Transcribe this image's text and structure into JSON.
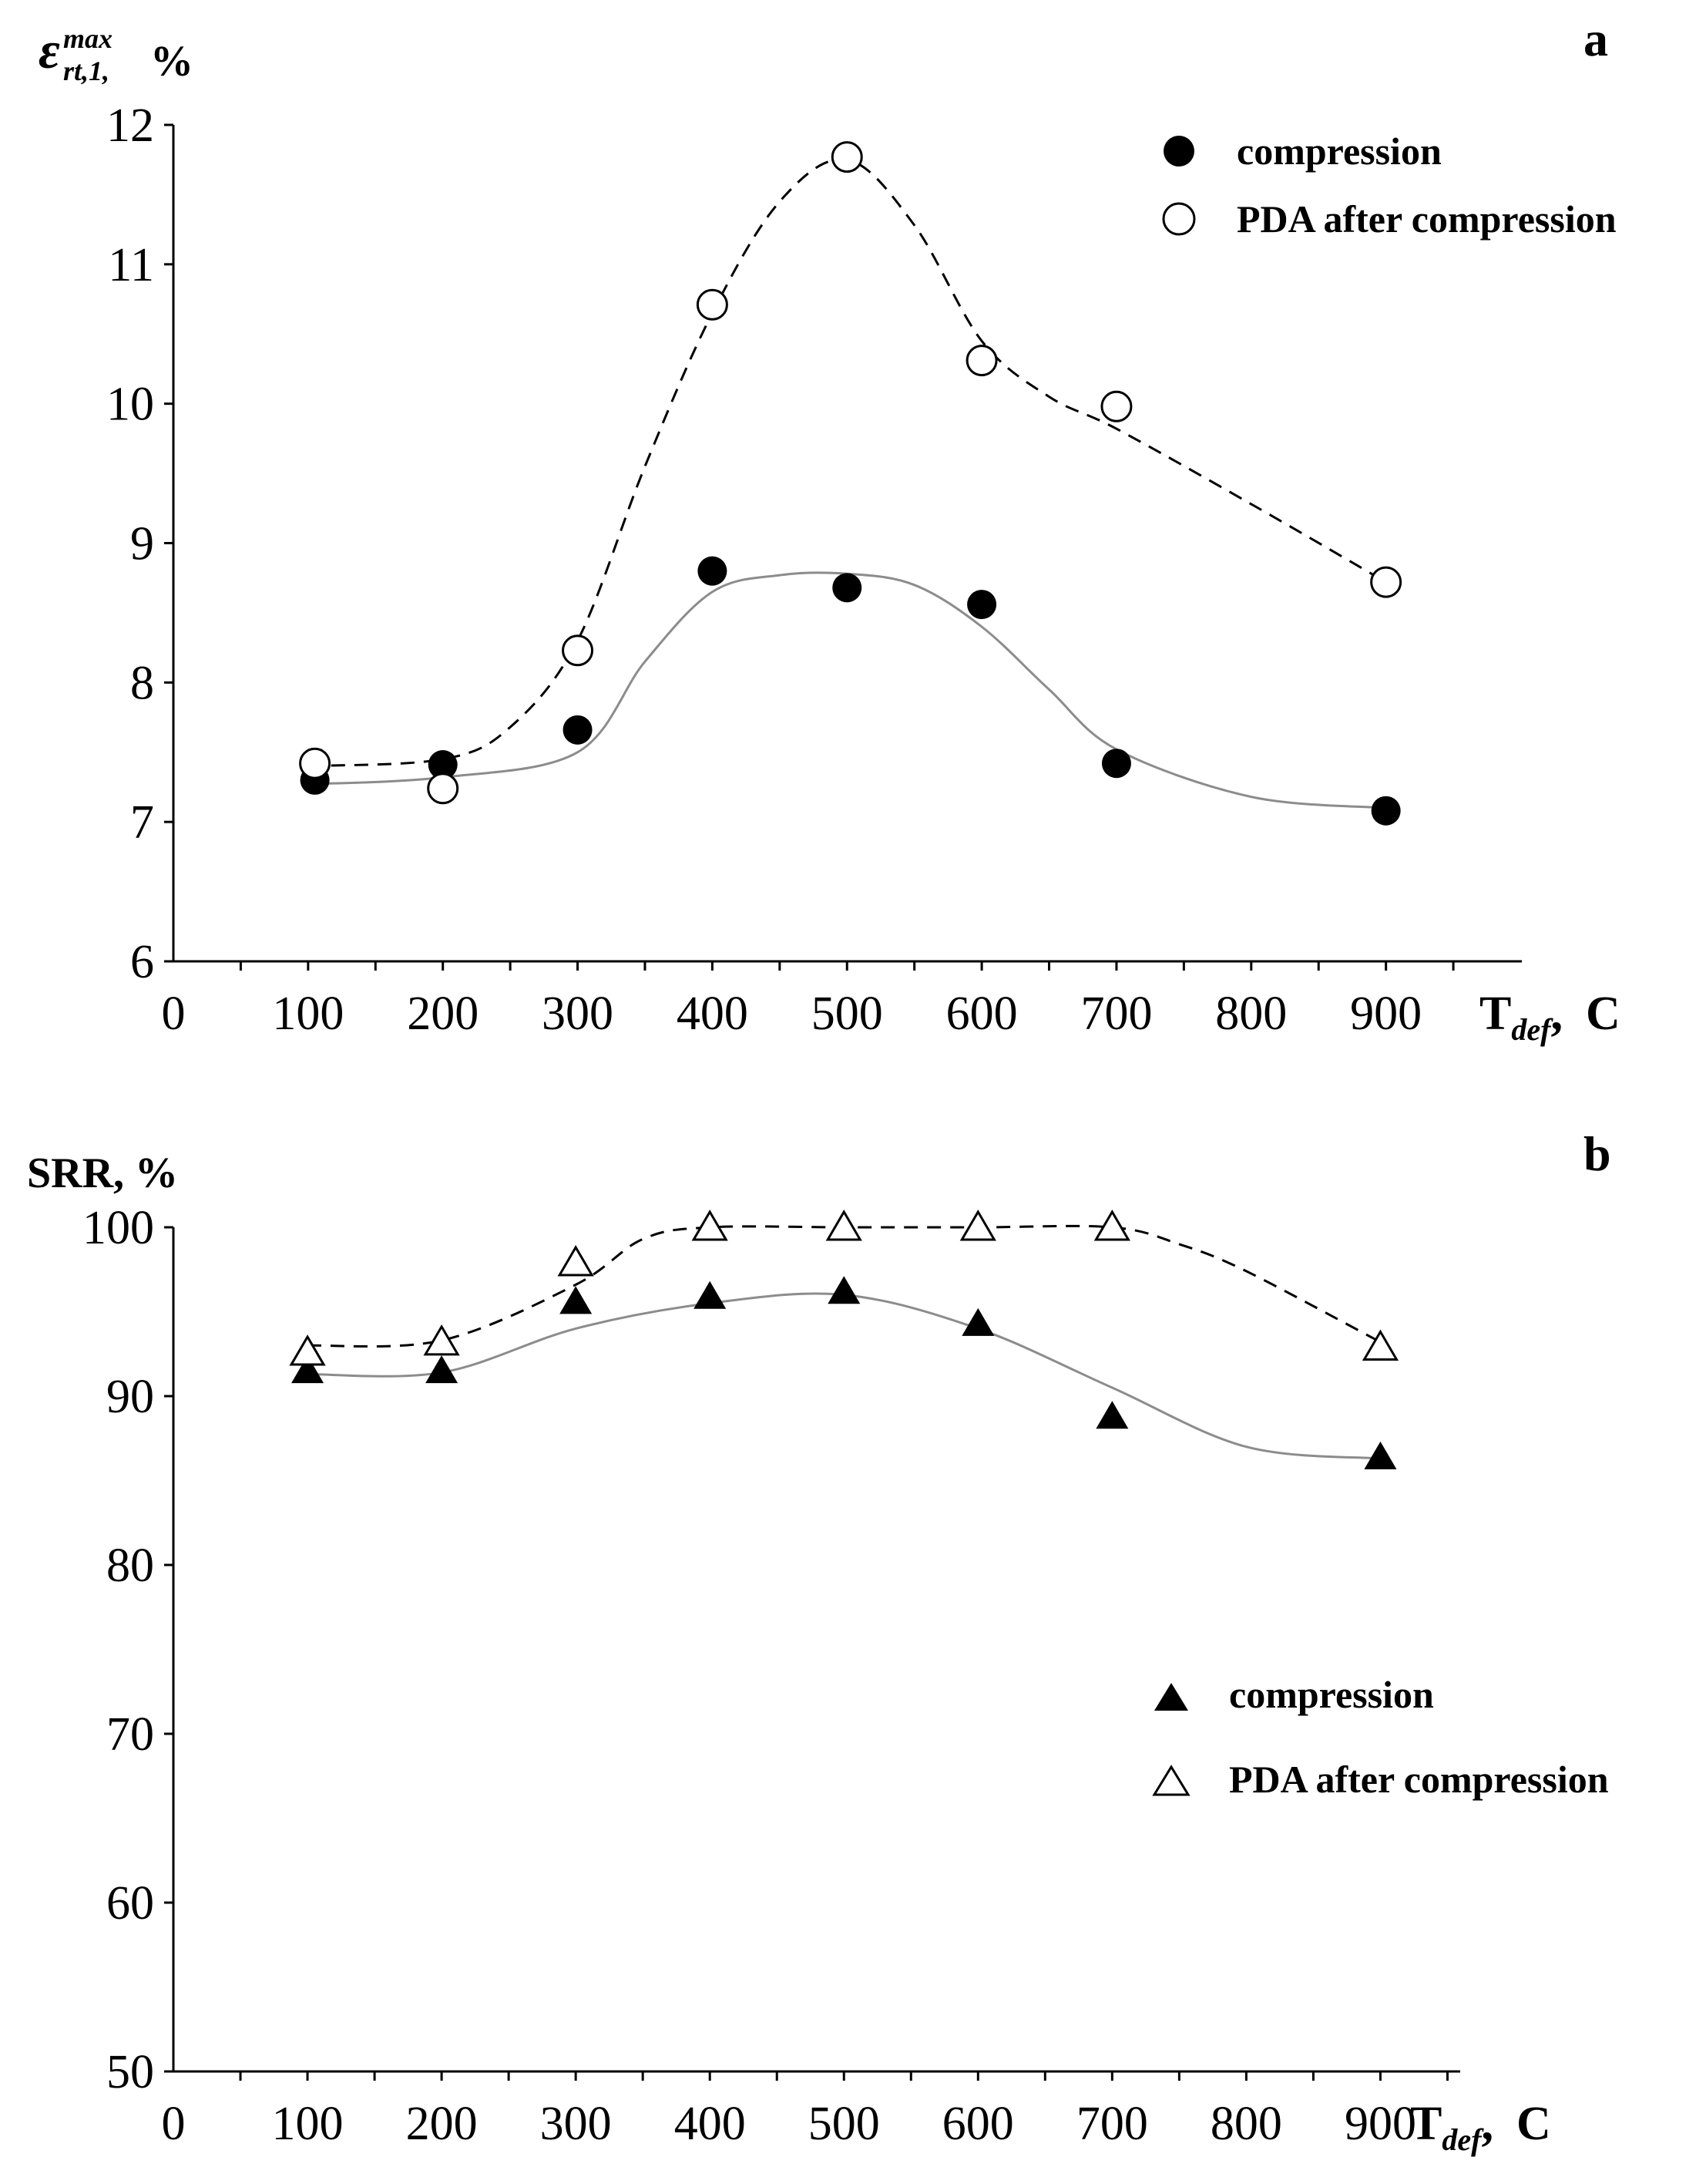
{
  "chart_data": [
    {
      "type": "scatter",
      "panel": "a",
      "ylabel": {
        "symbol": "ε",
        "sup": "max",
        "sub": "rt,1,",
        "unit": "%"
      },
      "xlabel": {
        "main": "T",
        "sub": "def",
        "sep": ",",
        "unit": "C"
      },
      "xlim": [
        0,
        1000
      ],
      "ylim": [
        6,
        12
      ],
      "xticks": [
        "0",
        "100",
        "200",
        "300",
        "400",
        "500",
        "600",
        "700",
        "800",
        "900"
      ],
      "yticks": [
        "6",
        "7",
        "8",
        "9",
        "10",
        "11",
        "12"
      ],
      "legend_position": "top-right",
      "series": [
        {
          "name": "compression",
          "marker": "filled-circle",
          "line": "solid-gray",
          "x": [
            105,
            200,
            300,
            400,
            500,
            600,
            700,
            900
          ],
          "y": [
            7.3,
            7.41,
            7.66,
            8.8,
            8.68,
            8.56,
            7.42,
            7.08
          ],
          "fit_x": [
            100,
            200,
            300,
            350,
            400,
            450,
            500,
            550,
            600,
            650,
            700,
            800,
            900
          ],
          "fit_y": [
            7.27,
            7.32,
            7.5,
            8.15,
            8.65,
            8.77,
            8.78,
            8.7,
            8.4,
            7.95,
            7.52,
            7.18,
            7.1
          ]
        },
        {
          "name": "PDA after compression",
          "marker": "open-circle",
          "line": "dashed-black",
          "x": [
            105,
            200,
            300,
            400,
            500,
            600,
            700,
            900
          ],
          "y": [
            7.42,
            7.24,
            8.23,
            10.71,
            11.77,
            10.31,
            9.98,
            8.72
          ],
          "fit_x": [
            100,
            200,
            250,
            300,
            350,
            400,
            450,
            500,
            550,
            600,
            650,
            700,
            800,
            900
          ],
          "fit_y": [
            7.4,
            7.45,
            7.68,
            8.3,
            9.55,
            10.65,
            11.45,
            11.75,
            11.28,
            10.45,
            10.05,
            9.82,
            9.28,
            8.72
          ]
        }
      ]
    },
    {
      "type": "scatter",
      "panel": "b",
      "ylabel": {
        "text": "SRR, %"
      },
      "xlabel": {
        "main": "T",
        "sub": "def",
        "sep": ",",
        "unit": "C"
      },
      "xlim": [
        0,
        1000
      ],
      "ylim": [
        50,
        100
      ],
      "xticks": [
        "0",
        "100",
        "200",
        "300",
        "400",
        "500",
        "600",
        "700",
        "800",
        "900"
      ],
      "yticks": [
        "50",
        "60",
        "70",
        "80",
        "90",
        "100"
      ],
      "legend_position": "center-right",
      "series": [
        {
          "name": "compression",
          "marker": "filled-triangle",
          "line": "solid-gray",
          "x": [
            100,
            200,
            300,
            400,
            500,
            600,
            700,
            900
          ],
          "y": [
            91.5,
            91.5,
            95.6,
            95.9,
            96.2,
            94.3,
            88.8,
            86.4
          ],
          "fit_x": [
            100,
            200,
            300,
            400,
            500,
            600,
            700,
            800,
            900
          ],
          "fit_y": [
            91.3,
            91.4,
            94.0,
            95.5,
            96.0,
            94.0,
            90.5,
            87.0,
            86.3
          ]
        },
        {
          "name": "PDA after compression",
          "marker": "open-triangle",
          "line": "dashed-black",
          "x": [
            100,
            200,
            300,
            400,
            500,
            600,
            700,
            900
          ],
          "y": [
            92.6,
            93.2,
            97.9,
            100,
            100,
            100,
            100,
            92.9
          ],
          "fit_x": [
            100,
            200,
            300,
            350,
            400,
            500,
            600,
            700,
            750,
            800,
            900
          ],
          "fit_y": [
            93.0,
            93.3,
            96.6,
            99.3,
            100.0,
            100.0,
            100.0,
            100.0,
            99.0,
            97.4,
            93.2
          ]
        }
      ]
    }
  ]
}
